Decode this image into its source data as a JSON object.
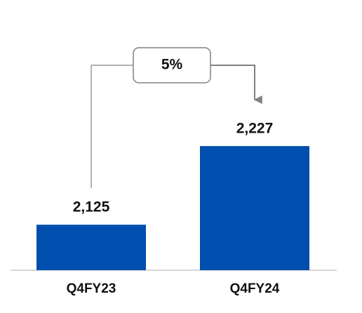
{
  "chart_data": {
    "type": "bar",
    "categories": [
      "Q4FY23",
      "Q4FY24"
    ],
    "values": [
      2125,
      2227
    ],
    "value_labels": [
      "2,125",
      "2,227"
    ],
    "color": "#004fae",
    "ylim": [
      2066,
      2330
    ],
    "annotations": [
      "5%"
    ]
  }
}
